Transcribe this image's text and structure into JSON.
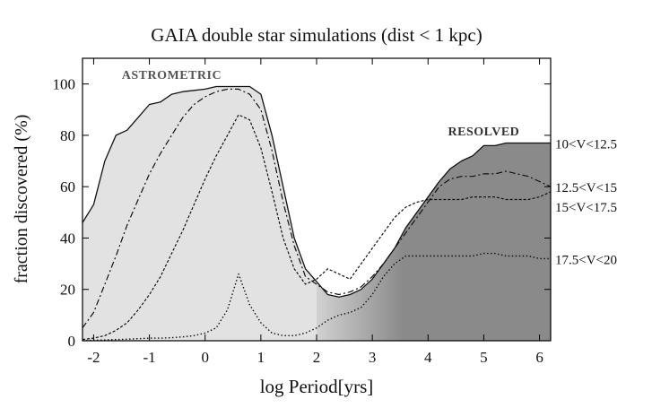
{
  "chart_data": {
    "type": "area",
    "title": "GAIA double star simulations (dist < 1 kpc)",
    "xlabel": "log Period[yrs]",
    "ylabel": "fraction discovered (%)",
    "xlim": [
      -2.2,
      6.2
    ],
    "ylim": [
      0,
      110
    ],
    "x_ticks": [
      -2,
      -1,
      0,
      1,
      2,
      3,
      4,
      5,
      6
    ],
    "x_tick_labels": [
      "-2",
      "-1",
      "0",
      "1",
      "2",
      "3",
      "4",
      "5",
      "6"
    ],
    "y_ticks": [
      0,
      20,
      40,
      60,
      80,
      100
    ],
    "y_tick_labels": [
      "0",
      "20",
      "40",
      "60",
      "80",
      "100"
    ],
    "region_labels": [
      {
        "text": "ASTROMETRIC",
        "x": -0.6,
        "y": 102
      },
      {
        "text": "RESOLVED",
        "x": 5.0,
        "y": 80
      }
    ],
    "series": [
      {
        "name": "10<V<12.5",
        "style": "solid",
        "x": [
          -2.2,
          -2.0,
          -1.8,
          -1.6,
          -1.4,
          -1.2,
          -1.0,
          -0.8,
          -0.6,
          -0.4,
          -0.2,
          0.0,
          0.2,
          0.4,
          0.6,
          0.8,
          1.0,
          1.2,
          1.4,
          1.6,
          1.8,
          2.0,
          2.2,
          2.4,
          2.6,
          2.8,
          3.0,
          3.2,
          3.4,
          3.6,
          3.8,
          4.0,
          4.2,
          4.4,
          4.6,
          4.8,
          5.0,
          5.2,
          5.4,
          5.6,
          5.8,
          6.0,
          6.2
        ],
        "y": [
          46,
          53,
          70,
          80,
          82,
          87,
          92,
          93,
          96,
          97,
          97.5,
          98,
          99,
          99,
          99,
          99,
          96,
          80,
          60,
          40,
          28,
          23,
          18,
          17,
          18,
          20,
          24,
          30,
          36,
          44,
          50,
          56,
          62,
          67,
          70,
          72,
          76,
          76,
          77,
          77,
          77,
          77,
          77
        ]
      },
      {
        "name": "12.5<V<15",
        "style": "dashdot",
        "x": [
          -2.2,
          -2.0,
          -1.8,
          -1.6,
          -1.4,
          -1.2,
          -1.0,
          -0.8,
          -0.6,
          -0.4,
          -0.2,
          0.0,
          0.2,
          0.4,
          0.6,
          0.8,
          1.0,
          1.2,
          1.4,
          1.6,
          1.8,
          2.0,
          2.2,
          2.4,
          2.6,
          2.8,
          3.0,
          3.2,
          3.4,
          3.6,
          3.8,
          4.0,
          4.2,
          4.4,
          4.6,
          4.8,
          5.0,
          5.2,
          5.4,
          5.6,
          5.8,
          6.0,
          6.2
        ],
        "y": [
          5,
          11,
          22,
          33,
          45,
          55,
          65,
          73,
          80,
          87,
          92,
          95,
          97,
          98,
          98,
          96,
          90,
          74,
          54,
          37,
          25,
          22,
          19,
          18,
          19,
          21,
          25,
          30,
          36,
          42,
          48,
          54,
          60,
          63,
          64,
          64,
          65,
          65,
          66,
          65,
          64,
          62,
          60
        ]
      },
      {
        "name": "15<V<17.5",
        "style": "dotted",
        "x": [
          -2.2,
          -2.0,
          -1.8,
          -1.6,
          -1.4,
          -1.2,
          -1.0,
          -0.8,
          -0.6,
          -0.4,
          -0.2,
          0.0,
          0.2,
          0.4,
          0.6,
          0.8,
          1.0,
          1.2,
          1.4,
          1.6,
          1.8,
          2.0,
          2.2,
          2.4,
          2.6,
          2.8,
          3.0,
          3.2,
          3.4,
          3.6,
          3.8,
          4.0,
          4.2,
          4.4,
          4.6,
          4.8,
          5.0,
          5.2,
          5.4,
          5.6,
          5.8,
          6.0,
          6.2
        ],
        "y": [
          0.5,
          1,
          2,
          4,
          7,
          12,
          18,
          25,
          34,
          43,
          53,
          63,
          72,
          80,
          88,
          86,
          75,
          58,
          40,
          28,
          22,
          24,
          28,
          26,
          24,
          30,
          36,
          42,
          48,
          52,
          54,
          55,
          55,
          55,
          55,
          56,
          56,
          56,
          55,
          55,
          55,
          56,
          58
        ]
      },
      {
        "name": "17.5<V<20",
        "style": "dotted-fine",
        "x": [
          -2.2,
          -2.0,
          -1.8,
          -1.6,
          -1.4,
          -1.2,
          -1.0,
          -0.8,
          -0.6,
          -0.4,
          -0.2,
          0.0,
          0.2,
          0.4,
          0.6,
          0.8,
          1.0,
          1.2,
          1.4,
          1.6,
          1.8,
          2.0,
          2.2,
          2.4,
          2.6,
          2.8,
          3.0,
          3.2,
          3.4,
          3.6,
          3.8,
          4.0,
          4.2,
          4.4,
          4.6,
          4.8,
          5.0,
          5.2,
          5.4,
          5.6,
          5.8,
          6.0,
          6.2
        ],
        "y": [
          0,
          0.2,
          0.3,
          0.5,
          0.6,
          0.8,
          1,
          1,
          1.2,
          1.5,
          2,
          3,
          5,
          12,
          26,
          14,
          7,
          3,
          2,
          2,
          3,
          5,
          8,
          10,
          11,
          13,
          18,
          25,
          30,
          33,
          33,
          33,
          33,
          33,
          33,
          33,
          34,
          34,
          33,
          33,
          33,
          32,
          32
        ]
      }
    ],
    "colors": {
      "astrometric_fill": "#e2e2e2",
      "resolved_fill": "#8a8a8a",
      "line": "#111111",
      "background": "#ffffff"
    }
  }
}
